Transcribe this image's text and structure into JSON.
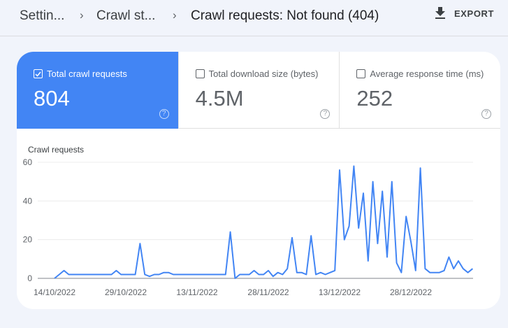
{
  "header": {
    "breadcrumbs": [
      {
        "label": "Settin..."
      },
      {
        "label": "Crawl st..."
      },
      {
        "label": "Crawl requests: Not found (404)"
      }
    ],
    "export_label": "EXPORT",
    "export_icon": "download-icon"
  },
  "metrics": [
    {
      "label": "Total crawl requests",
      "value": "804",
      "checked": true
    },
    {
      "label": "Total download size (bytes)",
      "value": "4.5M",
      "checked": false
    },
    {
      "label": "Average response time (ms)",
      "value": "252",
      "checked": false
    }
  ],
  "help_glyph": "?",
  "colors": {
    "accent": "#4285f4",
    "line": "#4285f4",
    "background": "#f1f4fb"
  },
  "chart_data": {
    "type": "line",
    "title": "",
    "ylabel": "Crawl requests",
    "xlabel": "",
    "ylim": [
      0,
      60
    ],
    "yticks": [
      0,
      20,
      40,
      60
    ],
    "xtick_labels": [
      "14/10/2022",
      "29/10/2022",
      "13/11/2022",
      "28/11/2022",
      "13/12/2022",
      "28/12/2022"
    ],
    "grid": true,
    "legend": "none",
    "start_date": "14/10/2022",
    "series": [
      {
        "name": "Total crawl requests",
        "values": [
          0,
          2,
          4,
          2,
          2,
          2,
          2,
          2,
          2,
          2,
          2,
          2,
          2,
          4,
          2,
          2,
          2,
          2,
          18,
          2,
          1,
          2,
          2,
          3,
          3,
          2,
          2,
          2,
          2,
          2,
          2,
          2,
          2,
          2,
          2,
          2,
          2,
          24,
          0,
          2,
          2,
          2,
          4,
          2,
          2,
          4,
          1,
          3,
          2,
          5,
          21,
          3,
          3,
          2,
          22,
          2,
          3,
          2,
          3,
          4,
          56,
          20,
          27,
          58,
          26,
          44,
          9,
          50,
          18,
          45,
          11,
          50,
          8,
          3,
          32,
          19,
          4,
          57,
          5,
          3,
          3,
          3,
          4,
          11,
          5,
          9,
          5,
          3,
          5
        ]
      }
    ]
  }
}
